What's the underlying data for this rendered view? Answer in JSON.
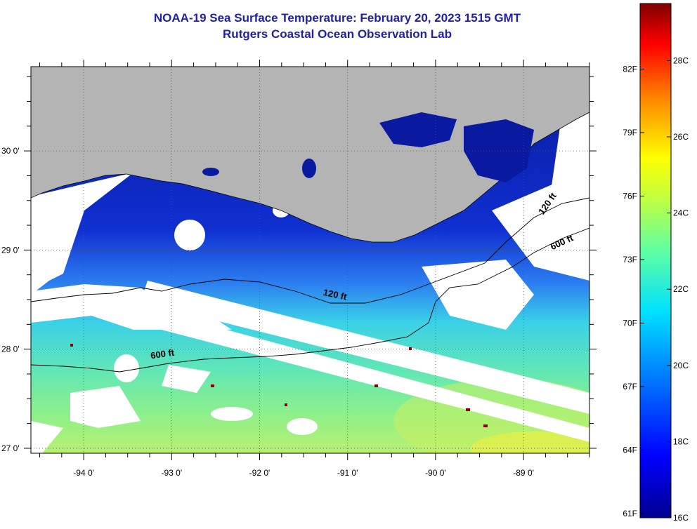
{
  "title": {
    "line1": "NOAA-19 Sea Surface Temperature:  February 20, 2023 1515 GMT",
    "line2": "Rutgers Coastal Ocean Observation Lab"
  },
  "map": {
    "lon_range": [
      -94.6,
      -88.25
    ],
    "lat_range": [
      26.95,
      30.85
    ],
    "lon_ticks": [
      {
        "value": -94,
        "label": "-94 0'"
      },
      {
        "value": -93,
        "label": "-93 0'"
      },
      {
        "value": -92,
        "label": "-92 0'"
      },
      {
        "value": -91,
        "label": "-91 0'"
      },
      {
        "value": -90,
        "label": "-90 0'"
      },
      {
        "value": -89,
        "label": "-89 0'"
      }
    ],
    "lat_ticks": [
      {
        "value": 27,
        "label": "27 0'"
      },
      {
        "value": 28,
        "label": "28 0'"
      },
      {
        "value": 29,
        "label": "29 0'"
      },
      {
        "value": 30,
        "label": "30 0'"
      }
    ],
    "contour_labels": [
      {
        "text": "600 ft",
        "lon": -93.1,
        "lat": 27.92,
        "rotate": -8
      },
      {
        "text": "120 ft",
        "lon": -91.15,
        "lat": 28.52,
        "rotate": 12
      },
      {
        "text": "600 ft",
        "lon": -88.55,
        "lat": 29.05,
        "rotate": -25
      },
      {
        "text": "120 ft",
        "lon": -88.7,
        "lat": 29.45,
        "rotate": -55
      }
    ],
    "colors": {
      "land": "#b4b4b4",
      "cloud": "#ffffff",
      "grid": "#555555"
    }
  },
  "colorbar": {
    "temp_range_c": [
      16,
      29.5
    ],
    "celsius_labels": [
      "28C",
      "26C",
      "24C",
      "22C",
      "20C",
      "18C",
      "16C"
    ],
    "celsius_values": [
      28,
      26,
      24,
      22,
      20,
      18,
      16
    ],
    "fahrenheit_labels": [
      "82F",
      "79F",
      "76F",
      "73F",
      "70F",
      "67F",
      "64F",
      "61F"
    ],
    "fahrenheit_values": [
      82,
      79,
      76,
      73,
      70,
      67,
      64,
      61
    ]
  }
}
